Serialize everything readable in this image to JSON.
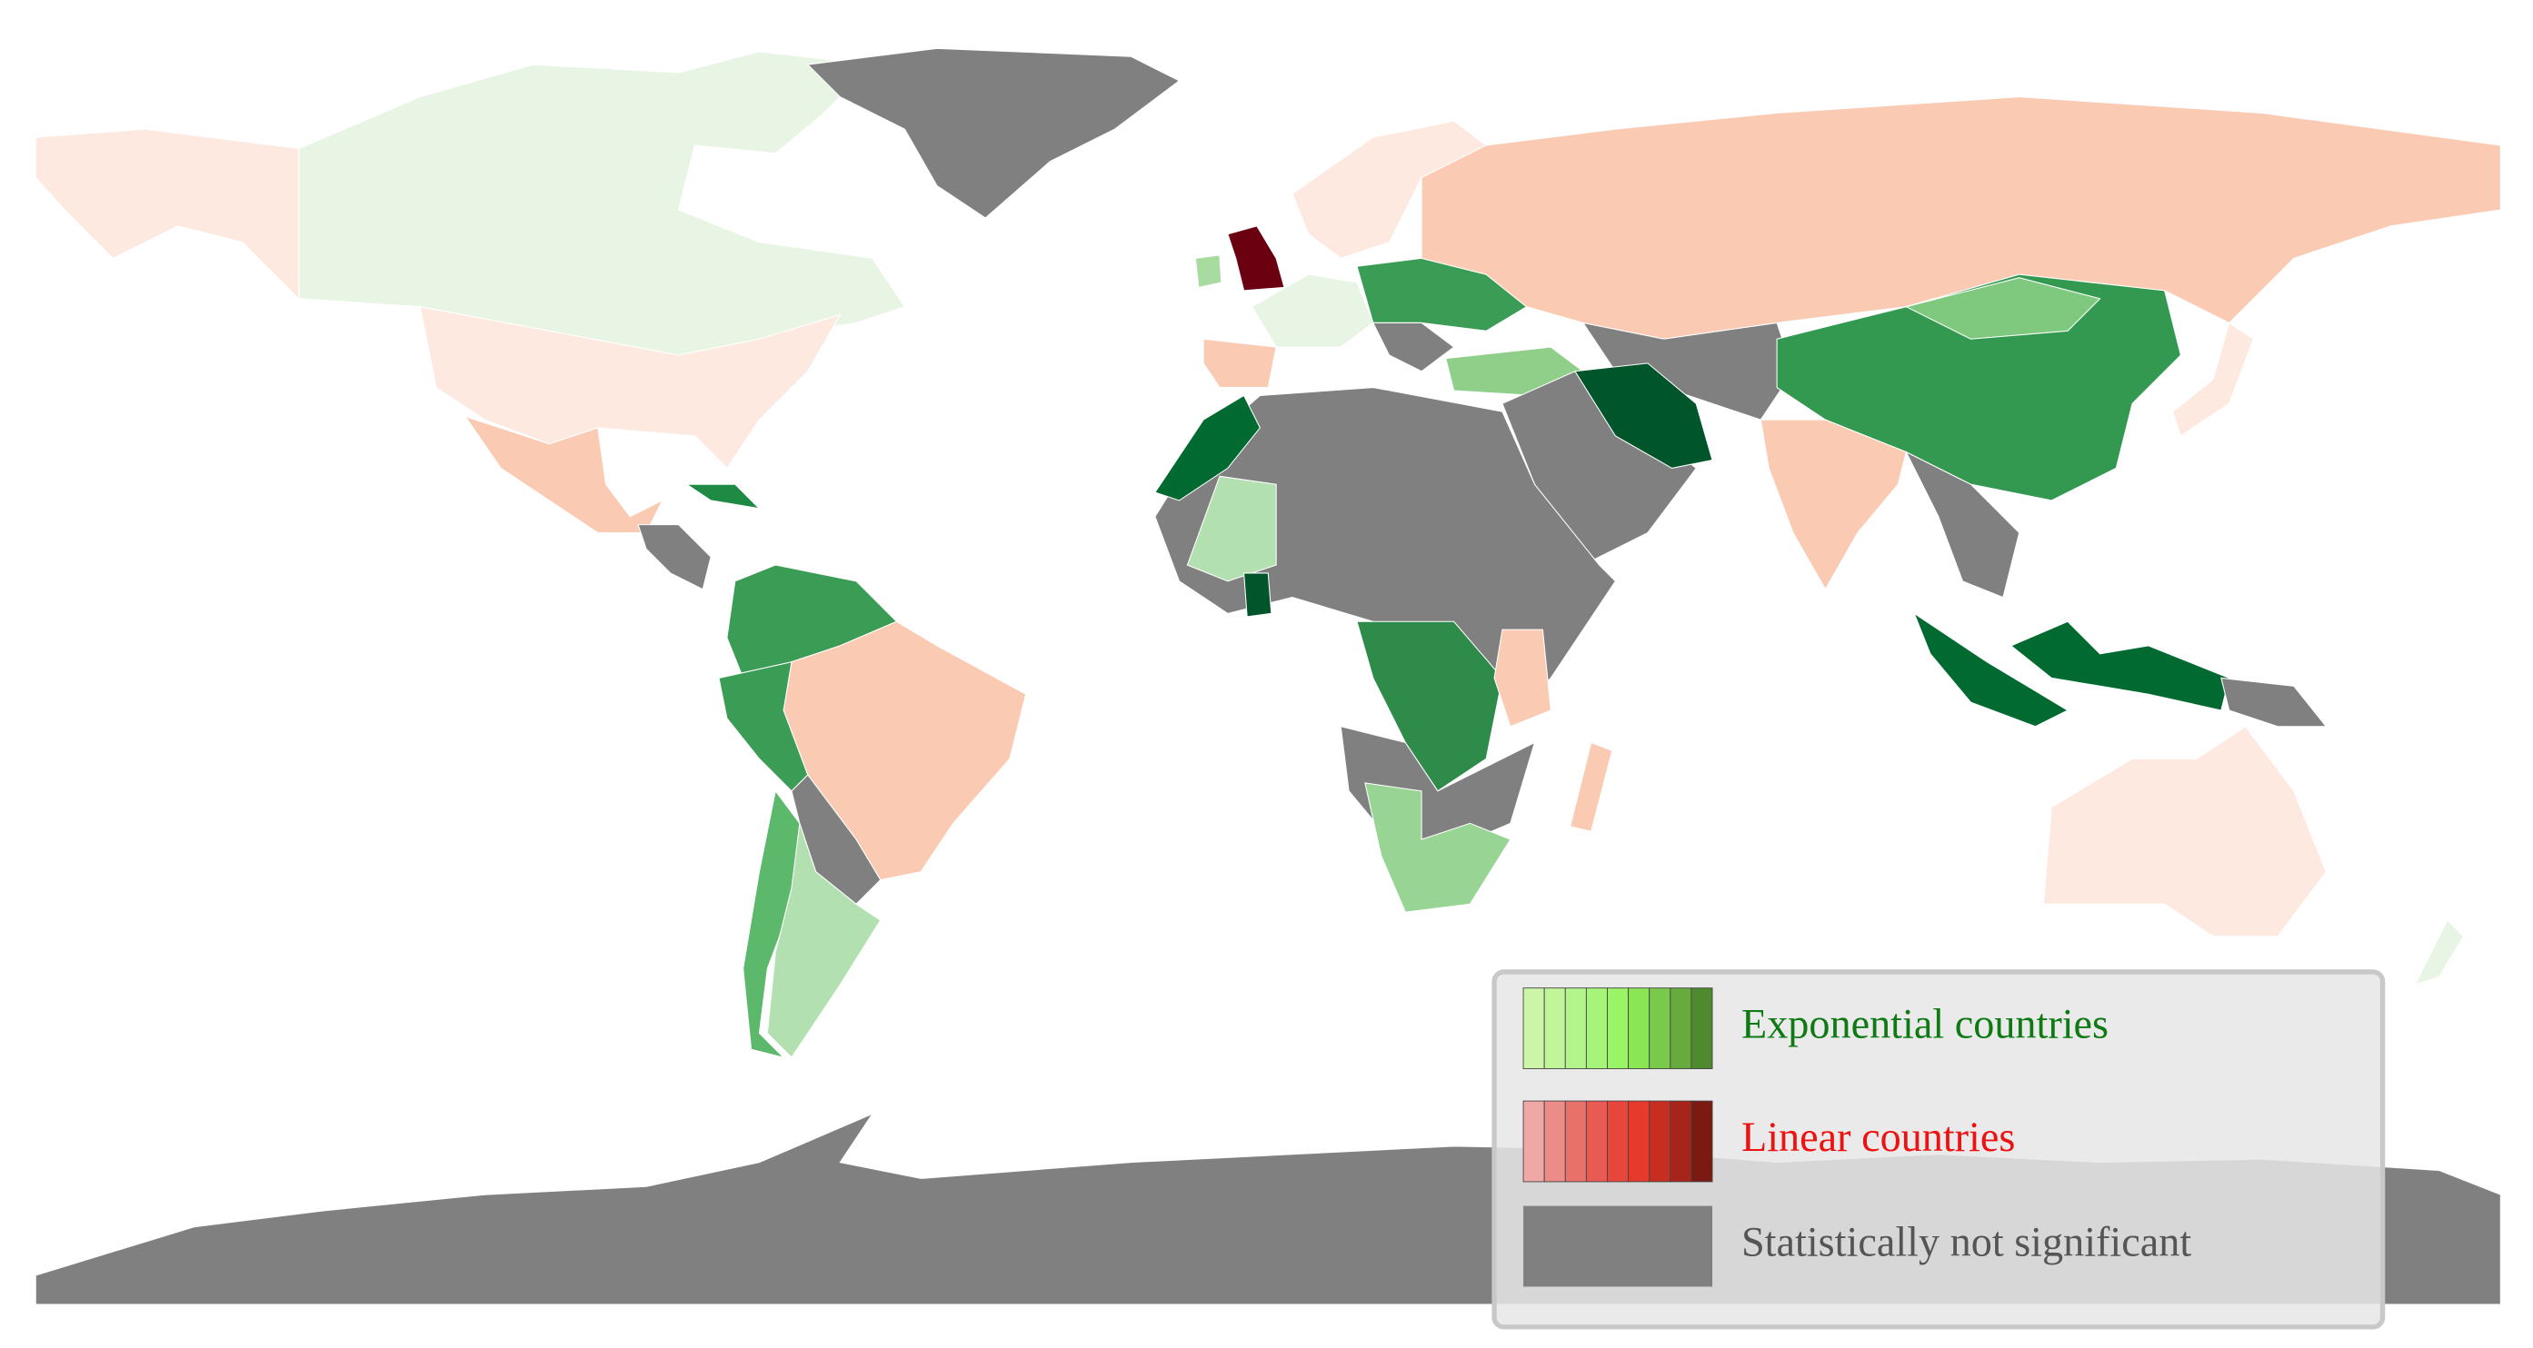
{
  "legend": {
    "items": [
      {
        "label": "Exponential countries"
      },
      {
        "label": "Linear countries"
      },
      {
        "label": "Statistically not significant"
      }
    ]
  }
}
